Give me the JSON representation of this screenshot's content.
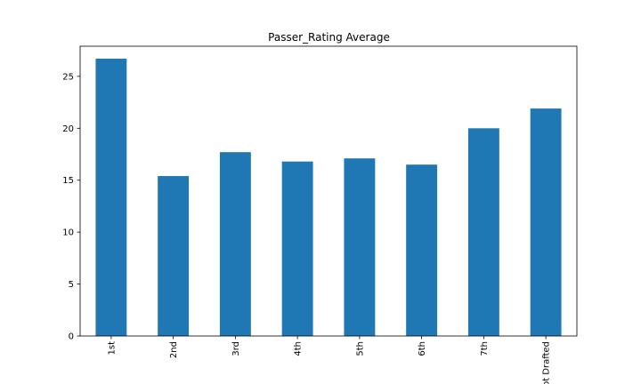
{
  "chart_data": {
    "type": "bar",
    "title": "Passer_Rating Average",
    "xlabel": "",
    "ylabel": "",
    "categories": [
      "1st",
      "2nd",
      "3rd",
      "4th",
      "5th",
      "6th",
      "7th",
      "Not Drafted"
    ],
    "values": [
      26.7,
      15.4,
      17.7,
      16.8,
      17.1,
      16.5,
      20.0,
      21.9
    ],
    "ylim": [
      0,
      27.9
    ],
    "yticks": [
      0,
      5,
      10,
      15,
      20,
      25
    ],
    "bar_color": "#1f77b4",
    "grid": false,
    "legend": "none"
  }
}
